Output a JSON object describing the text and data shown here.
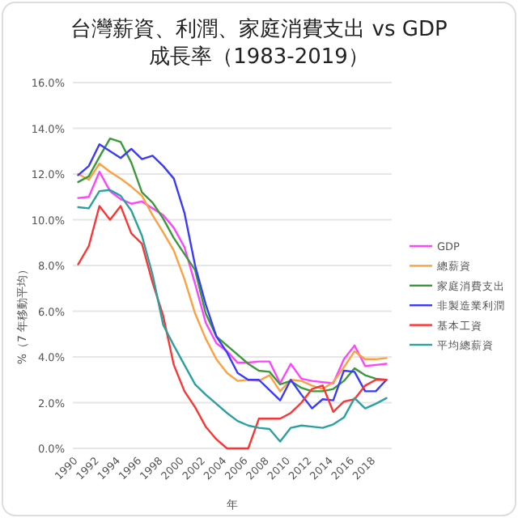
{
  "chart_data": {
    "type": "line",
    "title": "台灣薪資、利潤、家庭消費支出 vs GDP\n成長率（1983-2019）",
    "xlabel": "年",
    "ylabel": "%（7 年移動平均）",
    "x": [
      1990,
      1991,
      1992,
      1993,
      1994,
      1995,
      1996,
      1997,
      1998,
      1999,
      2000,
      2001,
      2002,
      2003,
      2004,
      2005,
      2006,
      2007,
      2008,
      2009,
      2010,
      2011,
      2012,
      2013,
      2014,
      2015,
      2016,
      2017,
      2018,
      2019
    ],
    "xlim": [
      1989.5,
      2019.5
    ],
    "xticks": [
      1990,
      1992,
      1994,
      1996,
      1998,
      2000,
      2002,
      2004,
      2006,
      2008,
      2010,
      2012,
      2014,
      2016,
      2018
    ],
    "ylim": [
      0,
      16
    ],
    "yticks": [
      {
        "value": 0,
        "label": "0.0%"
      },
      {
        "value": 2,
        "label": "2.0%"
      },
      {
        "value": 4,
        "label": "4.0%"
      },
      {
        "value": 6,
        "label": "6.0%"
      },
      {
        "value": 8,
        "label": "8.0%"
      },
      {
        "value": 10,
        "label": "10.0%"
      },
      {
        "value": 12,
        "label": "12.0%"
      },
      {
        "value": 14,
        "label": "14.0%"
      },
      {
        "value": 16,
        "label": "16.0%"
      }
    ],
    "grid": "y",
    "legend": "right",
    "marker": "none",
    "line_style": "solid",
    "series": [
      {
        "name": "GDP",
        "color": "#ff44ff",
        "values": [
          10.95,
          11.0,
          12.1,
          11.25,
          10.9,
          10.7,
          10.8,
          10.5,
          10.2,
          9.65,
          8.8,
          7.2,
          5.5,
          4.6,
          4.25,
          3.75,
          3.75,
          3.8,
          3.8,
          2.85,
          3.7,
          3.05,
          2.95,
          2.9,
          2.85,
          3.9,
          4.5,
          3.6,
          3.65,
          3.7
        ]
      },
      {
        "name": "總薪資",
        "color": "#ffa040",
        "values": [
          12.0,
          11.75,
          12.45,
          12.1,
          11.8,
          11.45,
          11.05,
          10.2,
          9.45,
          8.65,
          7.4,
          5.9,
          4.8,
          3.9,
          3.3,
          2.95,
          3.0,
          2.95,
          3.2,
          2.5,
          3.0,
          2.95,
          2.75,
          2.6,
          2.9,
          3.55,
          4.25,
          3.9,
          3.9,
          3.95
        ]
      },
      {
        "name": "家庭消費支出",
        "color": "#3a9a3a",
        "values": [
          11.65,
          11.9,
          12.75,
          13.55,
          13.4,
          12.5,
          11.2,
          10.75,
          10.05,
          9.2,
          8.5,
          7.8,
          5.9,
          4.9,
          4.5,
          4.1,
          3.7,
          3.4,
          3.35,
          2.8,
          2.95,
          2.65,
          2.5,
          2.5,
          2.6,
          2.95,
          3.5,
          3.2,
          3.05,
          3.0
        ]
      },
      {
        "name": "非製造業利潤",
        "color": "#3a3aff",
        "values": [
          11.95,
          12.35,
          13.3,
          13.0,
          12.7,
          13.1,
          12.65,
          12.8,
          12.35,
          11.8,
          10.3,
          8.0,
          6.3,
          4.9,
          4.2,
          3.3,
          3.0,
          3.0,
          2.55,
          2.1,
          3.0,
          2.35,
          1.75,
          2.15,
          2.1,
          3.4,
          3.35,
          2.5,
          2.5,
          3.0
        ]
      },
      {
        "name": "基本工資",
        "color": "#ff3333",
        "values": [
          8.05,
          8.85,
          10.6,
          10.0,
          10.6,
          9.4,
          8.95,
          7.25,
          5.8,
          3.65,
          2.5,
          1.8,
          0.95,
          0.4,
          0,
          0,
          0,
          1.3,
          1.3,
          1.3,
          1.55,
          2.0,
          2.6,
          2.75,
          1.6,
          2.05,
          2.15,
          2.75,
          3.0,
          3.0
        ]
      },
      {
        "name": "平均總薪資",
        "color": "#2aa0a0",
        "values": [
          10.55,
          10.5,
          11.25,
          11.3,
          11.05,
          10.4,
          9.3,
          7.6,
          5.4,
          4.5,
          3.65,
          2.8,
          2.35,
          1.95,
          1.55,
          1.2,
          1.0,
          0.9,
          0.85,
          0.3,
          0.9,
          1.0,
          0.95,
          0.9,
          1.05,
          1.35,
          2.2,
          1.75,
          1.95,
          2.2
        ]
      }
    ]
  }
}
